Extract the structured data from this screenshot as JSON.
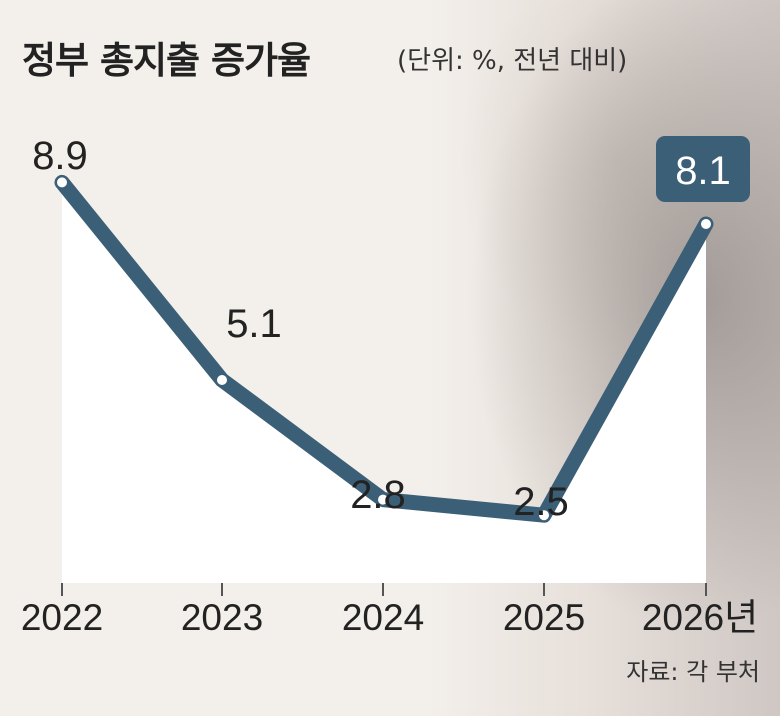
{
  "title": "정부 총지출 증가율",
  "unit": "(단위: %, 전년 대비)",
  "source": "자료: 각 부처",
  "colors": {
    "line": "#3c5f78",
    "area": "#ffffff",
    "highlight_bg": "#3c5f78",
    "text": "#222222"
  },
  "chart_data": {
    "type": "line",
    "categories": [
      "2022",
      "2023",
      "2024",
      "2025",
      "2026년"
    ],
    "values": [
      8.9,
      5.1,
      2.8,
      2.5,
      8.1
    ],
    "data_labels": [
      "8.9",
      "5.1",
      "2.8",
      "2.5",
      "8.1"
    ],
    "highlight_index": 4,
    "title": "정부 총지출 증가율",
    "xlabel": "",
    "ylabel": "",
    "unit": "%"
  }
}
